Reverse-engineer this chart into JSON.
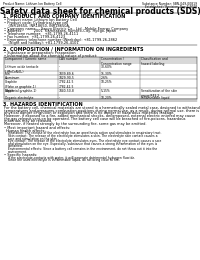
{
  "title": "Safety data sheet for chemical products (SDS)",
  "header_left": "Product Name: Lithium Ion Battery Cell",
  "header_right_line1": "Substance Number: SBN-049-00819",
  "header_right_line2": "Established / Revision: Dec.7.2010",
  "s1_title": "1. PRODUCT AND COMPANY IDENTIFICATION",
  "s1_lines": [
    "• Product name: Lithium Ion Battery Cell",
    "• Product code: Cylindrical-type cell",
    "    (INR18650, INR18650, INR18650A,",
    "• Company name:    Sanyo Electric Co., Ltd.  Mobile Energy Company",
    "• Address:          2001  Kamitakara, Sumoto-City, Hyogo, Japan",
    "• Telephone number:   +81-1799-26-4111",
    "• Fax number:  +81-1799-26-4123",
    "• Emergency telephone number (Weekday): +81-1799-26-2862",
    "    (Night and holiday): +81-1799-26-4101"
  ],
  "s2_title": "2. COMPOSITION / INFORMATION ON INGREDIENTS",
  "s2_line1": "• Substance or preparation: Preparation",
  "s2_line2": "• Information about the chemical nature of product:",
  "tbl_hdr": [
    "Component / Generic name",
    "CAS number",
    "Concentration /\nConcentration range",
    "Classification and\nhazard labeling"
  ],
  "tbl_rows": [
    [
      "Lithium oxide tentacle\n(LiMnCoNiO₂)",
      "-",
      "30-60%",
      ""
    ],
    [
      "Iron",
      "7439-89-6",
      "15-30%",
      ""
    ],
    [
      "Aluminum",
      "7429-90-5",
      "2-6%",
      ""
    ],
    [
      "Graphite\n(Flake or graphite-1)\n(Artificial graphite-1)",
      "7782-42-5\n7782-42-5",
      "10-25%",
      ""
    ],
    [
      "Copper",
      "7440-50-8",
      "5-15%",
      "Sensitization of the skin\ngroup R43.2"
    ],
    [
      "Organic electrolyte",
      "-",
      "10-20%",
      "Inflammable liquid"
    ]
  ],
  "tbl_row_h": [
    7,
    4,
    4,
    9,
    7,
    4
  ],
  "s3_title": "3. HAZARDS IDENTIFICATION",
  "s3_body": [
    "For the battery cell, chemical materials are stored in a hermetically sealed metal case, designed to withstand",
    "temperatures and pressures-combustion-positions during normal use, as a result, during normal use, there is no",
    "physical danger of ignition or explosion and there is no danger of hazardous materials leakage.",
    "However, if exposed to a fire, added mechanical shocks, decomposed, external electric entered may cause",
    "the gas release vent on be operated. The battery cell case will be breached of fire-poisons. hazardous",
    "materials may be released.",
    "Moreover, if heated strongly by the surrounding fire, some gas may be emitted."
  ],
  "s3_bullet1": "• Most important hazard and effects:",
  "s3_human": "Human health effects:",
  "s3_inh": "Inhalation: The release of the electrolyte has an anesthesia action and stimulates in respiratory tract.",
  "s3_skin1": "Skin contact: The release of the electrolyte stimulates a skin. The electrolyte skin contact causes a",
  "s3_skin2": "sore and stimulation on the skin.",
  "s3_eye1": "Eye contact: The release of the electrolyte stimulates eyes. The electrolyte eye contact causes a sore",
  "s3_eye2": "and stimulation on the eye. Especially, substance that causes a strong inflammation of the eyes is",
  "s3_eye3": "contained.",
  "s3_env1": "Environmental effects: Since a battery cell remains in the environment, do not throw out it into the",
  "s3_env2": "environment.",
  "s3_bullet2": "• Specific hazards:",
  "s3_sp1": "If the electrolyte contacts with water, it will generate detrimental hydrogen fluoride.",
  "s3_sp2": "Since the used electrolyte is inflammable liquid, do not bring close to fire.",
  "bg": "#ffffff",
  "fg": "#000000",
  "gray": "#d8d8d8"
}
